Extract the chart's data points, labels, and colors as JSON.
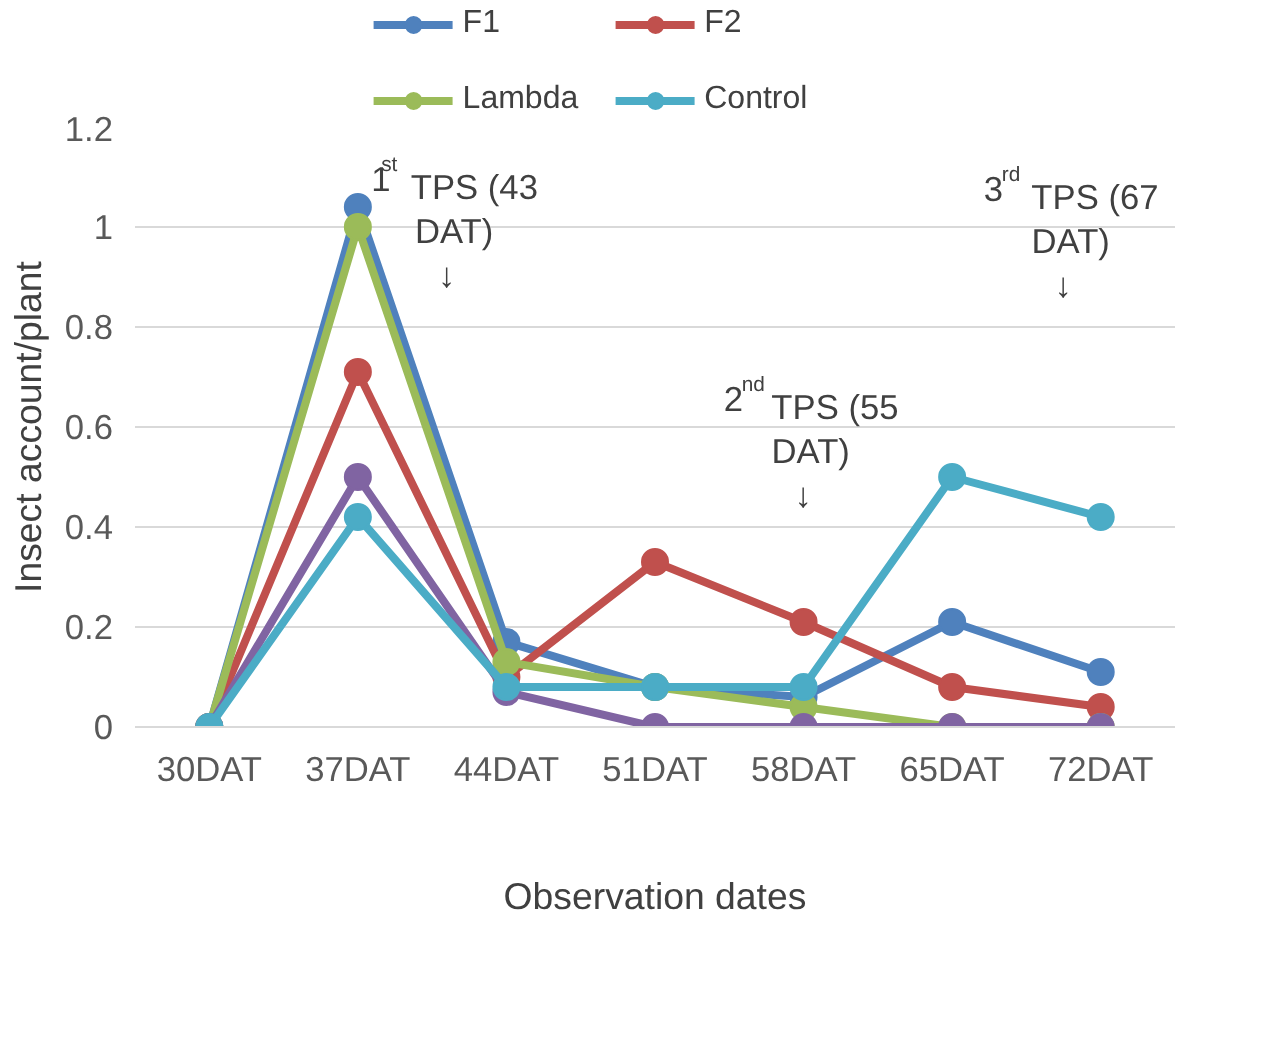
{
  "chart_data": {
    "type": "line",
    "xlabel": "Observation dates",
    "ylabel": "Insect account/plant",
    "categories": [
      "30DAT",
      "37DAT",
      "44DAT",
      "51DAT",
      "58DAT",
      "65DAT",
      "72DAT"
    ],
    "series": [
      {
        "name": "F1",
        "color": "#4f81bd",
        "values": [
          0,
          1.04,
          0.17,
          0.08,
          0.06,
          0.21,
          0.11
        ]
      },
      {
        "name": "F2",
        "color": "#c0504d",
        "values": [
          0,
          0.71,
          0.1,
          0.33,
          0.21,
          0.08,
          0.04
        ]
      },
      {
        "name": "Lambda",
        "color": "#9bbb59",
        "values": [
          0,
          1.0,
          0.13,
          0.08,
          0.04,
          0,
          0
        ]
      },
      {
        "color": "#8064a2",
        "values": [
          0,
          0.5,
          0.07,
          0,
          0,
          0,
          0
        ]
      },
      {
        "name": "Control",
        "color": "#4bacc6",
        "values": [
          0,
          0.42,
          0.08,
          0.08,
          0.08,
          0.5,
          0.42
        ]
      }
    ],
    "ylim": [
      0,
      1.2
    ],
    "yticks": [
      0,
      {
        "value": 0.2,
        "label": "0.2"
      },
      {
        "value": 0.4,
        "label": "0.4"
      },
      {
        "value": 0.6,
        "label": "0.6"
      },
      {
        "value": 0.8,
        "label": "0.8"
      },
      1,
      {
        "value": 1.2,
        "label": "1.2"
      }
    ],
    "annotations": [
      "1$^{st}$ TPS (43\nDAT)\n↓",
      "2$^{nd}$ TPS (55\nDAT)\n↓",
      "3$^{rd}$ TPS (67\nDAT)\n↓"
    ],
    "grid": "y",
    "legend": "top",
    "marker": "circle",
    "line_style": "solid"
  }
}
